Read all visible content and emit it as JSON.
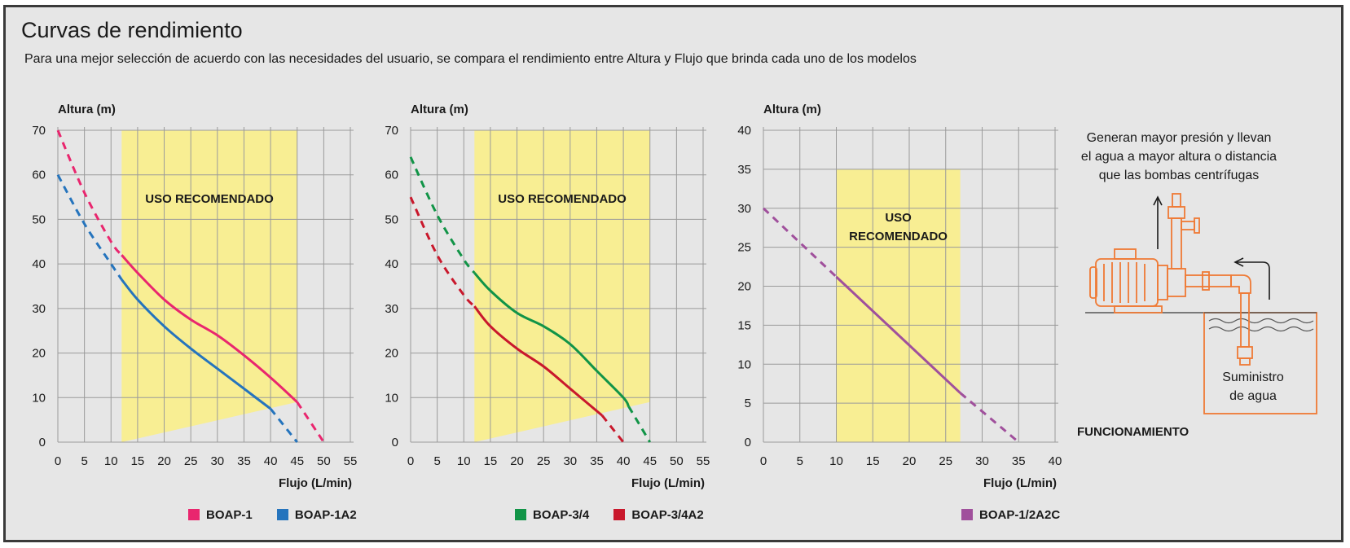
{
  "header": {
    "title": "Curvas de rendimiento",
    "subtitle": "Para una mejor selección de acuerdo con las necesidades del usuario, se compara el rendimiento entre Altura y Flujo que brinda cada uno de los modelos"
  },
  "colors": {
    "BOAP-1": "#e9266e",
    "BOAP-1A2": "#2574bd",
    "BOAP-3/4": "#119447",
    "BOAP-3/4A2": "#c9182c",
    "BOAP-1/2A2C": "#a0509c",
    "zone": "#f8ee93",
    "diagram": "#ef7a35"
  },
  "chart_data": [
    {
      "type": "line",
      "xlabel": "Flujo (L/min)",
      "ylabel": "Altura (m)",
      "xlim": [
        0,
        55
      ],
      "ylim": [
        0,
        70
      ],
      "xticks": [
        0,
        5,
        10,
        15,
        20,
        25,
        30,
        35,
        40,
        45,
        50,
        55
      ],
      "yticks": [
        0,
        10,
        20,
        30,
        40,
        50,
        60,
        70
      ],
      "grid": true,
      "legend": "bottom",
      "recommended_zone": {
        "label": "USO RECOMENDADO",
        "x": [
          12,
          45
        ],
        "y_top": 70,
        "y_bottom_left": 0,
        "y_bottom_right": 9
      },
      "series": [
        {
          "name": "BOAP-1",
          "x": [
            0,
            5,
            10,
            12,
            15,
            20,
            25,
            30,
            35,
            40,
            45,
            50
          ],
          "y": [
            70,
            56,
            45,
            42,
            38,
            32,
            27.5,
            24,
            19.5,
            14.5,
            9,
            0
          ],
          "solid_range": [
            12,
            45
          ]
        },
        {
          "name": "BOAP-1A2",
          "x": [
            0,
            5,
            10,
            12,
            15,
            20,
            25,
            30,
            35,
            40,
            45
          ],
          "y": [
            60,
            49,
            40,
            36.5,
            32,
            26,
            21,
            16.5,
            12,
            7.5,
            0
          ],
          "solid_range": [
            12,
            40
          ]
        }
      ]
    },
    {
      "type": "line",
      "xlabel": "Flujo (L/min)",
      "ylabel": "Altura (m)",
      "xlim": [
        0,
        55
      ],
      "ylim": [
        0,
        70
      ],
      "xticks": [
        0,
        5,
        10,
        15,
        20,
        25,
        30,
        35,
        40,
        45,
        50,
        55
      ],
      "yticks": [
        0,
        10,
        20,
        30,
        40,
        50,
        60,
        70
      ],
      "grid": true,
      "legend": "bottom",
      "recommended_zone": {
        "label": "USO RECOMENDADO",
        "x": [
          12,
          45
        ],
        "y_top": 70,
        "y_bottom_left": 0,
        "y_bottom_right": 9
      },
      "series": [
        {
          "name": "BOAP-3/4",
          "x": [
            0,
            5,
            10,
            12,
            15,
            20,
            25,
            30,
            35,
            40,
            41,
            45
          ],
          "y": [
            64,
            51,
            41,
            38,
            34,
            29,
            26,
            22,
            16,
            10,
            8,
            0
          ],
          "solid_range": [
            12,
            41
          ]
        },
        {
          "name": "BOAP-3/4A2",
          "x": [
            0,
            5,
            10,
            12,
            15,
            20,
            25,
            30,
            36,
            40
          ],
          "y": [
            55,
            42,
            33,
            30.5,
            26,
            21,
            17,
            12,
            6,
            0
          ],
          "solid_range": [
            12,
            36
          ]
        }
      ]
    },
    {
      "type": "line",
      "xlabel": "Flujo (L/min)",
      "ylabel": "Altura (m)",
      "xlim": [
        0,
        40
      ],
      "ylim": [
        0,
        40
      ],
      "xticks": [
        0,
        5,
        10,
        15,
        20,
        25,
        30,
        35,
        40
      ],
      "yticks": [
        0,
        5,
        10,
        15,
        20,
        25,
        30,
        35,
        40
      ],
      "grid": true,
      "legend": "bottom",
      "recommended_zone": {
        "label_lines": [
          "USO",
          "RECOMENDADO"
        ],
        "x": [
          10,
          27
        ],
        "y_top": 35,
        "y_bottom_left": 0,
        "y_bottom_right": 0
      },
      "series": [
        {
          "name": "BOAP-1/2A2C",
          "x": [
            0,
            10,
            27,
            35
          ],
          "y": [
            30,
            21.2,
            6.3,
            0
          ],
          "solid_range": [
            10,
            27
          ]
        }
      ]
    }
  ],
  "diagram": {
    "caption_lines": [
      "Generan mayor presión y llevan",
      "el agua a mayor altura o distancia",
      "que las bombas centrífugas"
    ],
    "supply_lines": [
      "Suministro",
      "de agua"
    ],
    "label": "FUNCIONAMIENTO"
  }
}
